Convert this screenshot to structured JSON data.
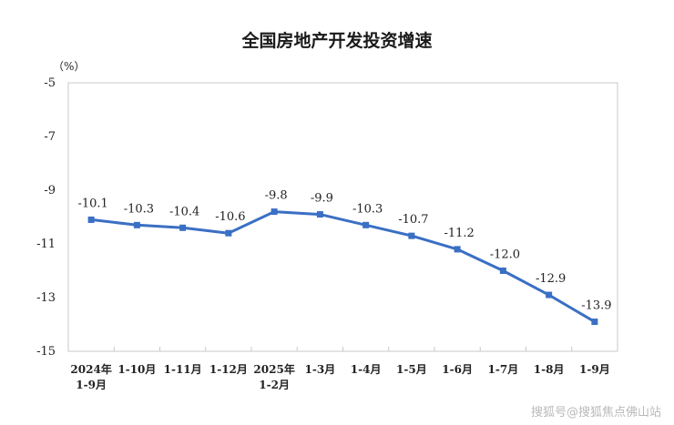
{
  "chart_data": {
    "type": "line",
    "title": "全国房地产开发投资增速",
    "ylabel": "（%）",
    "ylim": [
      -15,
      -5
    ],
    "yticks": [
      -5,
      -7,
      -9,
      -11,
      -13,
      -15
    ],
    "categories": [
      [
        "2024年",
        "1-9月"
      ],
      [
        "1-10月"
      ],
      [
        "1-11月"
      ],
      [
        "1-12月"
      ],
      [
        "2025年",
        "1-2月"
      ],
      [
        "1-3月"
      ],
      [
        "1-4月"
      ],
      [
        "1-5月"
      ],
      [
        "1-6月"
      ],
      [
        "1-7月"
      ],
      [
        "1-8月"
      ],
      [
        "1-9月"
      ]
    ],
    "series": [
      {
        "values": [
          -10.1,
          -10.3,
          -10.4,
          -10.6,
          -9.8,
          -9.9,
          -10.3,
          -10.7,
          -11.2,
          -12.0,
          -12.9,
          -13.9
        ],
        "labels": [
          "-10.1",
          "-10.3",
          "-10.4",
          "-10.6",
          "-9.8",
          "-9.9",
          "-10.3",
          "-10.7",
          "-11.2",
          "-12.0",
          "-12.9",
          "-13.9"
        ],
        "color": "#3a6fc4"
      }
    ],
    "grid": false,
    "legend": "none"
  },
  "watermark": "搜狐号@搜狐焦点佛山站"
}
